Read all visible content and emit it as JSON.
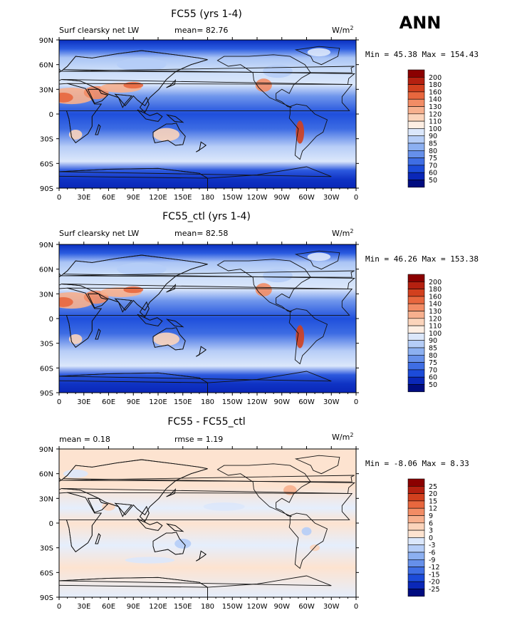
{
  "season": "ANN",
  "units": "W/m",
  "units_sup": "2",
  "x_ticks": [
    "0",
    "30E",
    "60E",
    "90E",
    "120E",
    "150E",
    "180",
    "150W",
    "120W",
    "90W",
    "60W",
    "30W",
    "0"
  ],
  "y_ticks": [
    "90N",
    "60N",
    "30N",
    "0",
    "30S",
    "60S",
    "90S"
  ],
  "panels": [
    {
      "title": "FC55 (yrs 1-4)",
      "left_label": "Surf clearsky net LW",
      "mid_label": "mean=  82.76",
      "stats": "Min =  45.38 Max = 154.43",
      "scale": "abs"
    },
    {
      "title": "FC55_ctl (yrs 1-4)",
      "left_label": "Surf clearsky net LW",
      "mid_label": "mean=  82.58",
      "stats": "Min =  46.26 Max = 153.38",
      "scale": "abs"
    },
    {
      "title": "FC55 - FC55_ctl",
      "left_label": "mean =   0.18",
      "mid_label": "rmse =   1.19",
      "stats": "Min =  -8.06 Max =   8.33",
      "scale": "diff"
    }
  ],
  "scales": {
    "abs": {
      "labels": [
        "200",
        "180",
        "160",
        "140",
        "130",
        "120",
        "110",
        "100",
        "90",
        "85",
        "80",
        "75",
        "70",
        "60",
        "50"
      ],
      "colors": [
        "#8b0000",
        "#b52010",
        "#d2401e",
        "#e8673e",
        "#f28c65",
        "#f7b08e",
        "#fbd4bb",
        "#fdeee3",
        "#dbe7fb",
        "#b5cdf7",
        "#8cb0f1",
        "#6690ea",
        "#3f6ee4",
        "#1c4bd9",
        "#0a27b8",
        "#000c80"
      ]
    },
    "diff": {
      "labels": [
        "25",
        "20",
        "15",
        "12",
        "9",
        "6",
        "3",
        "0",
        "-3",
        "-6",
        "-9",
        "-12",
        "-15",
        "-20",
        "-25"
      ],
      "colors": [
        "#8b0000",
        "#b52010",
        "#d2401e",
        "#e8673e",
        "#f28c65",
        "#f7b08e",
        "#fbd4bb",
        "#fde3d0",
        "#dbe7fb",
        "#b5cdf7",
        "#8cb0f1",
        "#6690ea",
        "#3f6ee4",
        "#1c4bd9",
        "#0a27b8",
        "#000c80"
      ]
    }
  },
  "chart_data": [
    {
      "type": "heatmap",
      "title": "FC55 (yrs 1-4)",
      "variable": "Surf clearsky net LW",
      "units": "W/m2",
      "mean": 82.76,
      "min": 45.38,
      "max": 154.43,
      "xlim": [
        0,
        360
      ],
      "ylim": [
        -90,
        90
      ],
      "levels": [
        50,
        60,
        70,
        75,
        80,
        85,
        90,
        100,
        110,
        120,
        130,
        140,
        160,
        180,
        200
      ]
    },
    {
      "type": "heatmap",
      "title": "FC55_ctl (yrs 1-4)",
      "variable": "Surf clearsky net LW",
      "units": "W/m2",
      "mean": 82.58,
      "min": 46.26,
      "max": 153.38,
      "xlim": [
        0,
        360
      ],
      "ylim": [
        -90,
        90
      ],
      "levels": [
        50,
        60,
        70,
        75,
        80,
        85,
        90,
        100,
        110,
        120,
        130,
        140,
        160,
        180,
        200
      ]
    },
    {
      "type": "heatmap",
      "title": "FC55 - FC55_ctl",
      "units": "W/m2",
      "mean": 0.18,
      "rmse": 1.19,
      "min": -8.06,
      "max": 8.33,
      "xlim": [
        0,
        360
      ],
      "ylim": [
        -90,
        90
      ],
      "levels": [
        -25,
        -20,
        -15,
        -12,
        -9,
        -6,
        -3,
        0,
        3,
        6,
        9,
        12,
        15,
        20,
        25
      ]
    }
  ]
}
